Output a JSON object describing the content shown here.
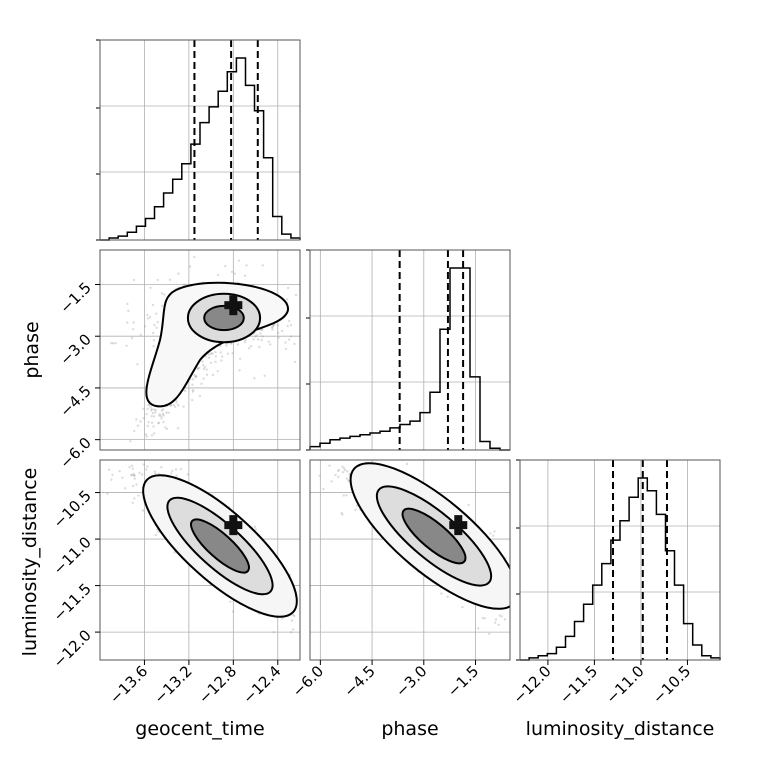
{
  "chart_data": {
    "type": "corner",
    "parameters": [
      "geocent_time",
      "phase",
      "luminosity_distance"
    ],
    "axes": {
      "geocent_time": {
        "range": [
          -14.0,
          -12.2
        ],
        "ticks": [
          -13.6,
          -13.2,
          -12.8,
          -12.4
        ],
        "tick_labels": [
          "−13.6",
          "−13.2",
          "−12.8",
          "−12.4"
        ]
      },
      "phase": {
        "range": [
          -6.3,
          -0.5
        ],
        "ticks": [
          -6.0,
          -4.5,
          -3.0,
          -1.5
        ],
        "tick_labels": [
          "−6.0",
          "−4.5",
          "−3.0",
          "−1.5"
        ]
      },
      "luminosity_distance": {
        "range": [
          -12.3,
          -10.15
        ],
        "ticks": [
          -12.0,
          -11.5,
          -11.0,
          -10.5
        ],
        "tick_labels": [
          "−12.0",
          "−11.5",
          "−11.0",
          "−10.5"
        ]
      }
    },
    "histograms": {
      "geocent_time": {
        "counts": [
          0,
          1,
          2,
          4,
          7,
          11,
          17,
          24,
          31,
          39,
          49,
          60,
          68,
          76,
          86,
          93,
          79,
          66,
          42,
          12,
          3,
          1
        ],
        "quantile_lines": [
          -13.15,
          -12.82,
          -12.58
        ]
      },
      "phase": {
        "counts": [
          2,
          4,
          6,
          7,
          8,
          9,
          10,
          11,
          13,
          15,
          17,
          22,
          34,
          71,
          107,
          107,
          43,
          5,
          1,
          0
        ],
        "quantile_lines": [
          -3.7,
          -2.3,
          -1.86
        ]
      },
      "luminosity_distance": {
        "counts": [
          0,
          1,
          2,
          3,
          6,
          11,
          18,
          26,
          35,
          45,
          56,
          65,
          76,
          85,
          79,
          68,
          51,
          35,
          17,
          7,
          2,
          1
        ],
        "quantile_lines": [
          -11.3,
          -10.98,
          -10.72
        ]
      }
    },
    "pairs": [
      {
        "x": "geocent_time",
        "y": "phase",
        "peak": [
          -12.8,
          -2.1
        ]
      },
      {
        "x": "geocent_time",
        "y": "luminosity_distance",
        "peak": [
          -12.8,
          -10.85
        ]
      },
      {
        "x": "phase",
        "y": "luminosity_distance",
        "peak": [
          -2.0,
          -10.85
        ]
      }
    ],
    "grid": true,
    "colors": {
      "line": "#000000",
      "samples": "#9a9a9a",
      "grid": "#b0b0b0"
    }
  }
}
